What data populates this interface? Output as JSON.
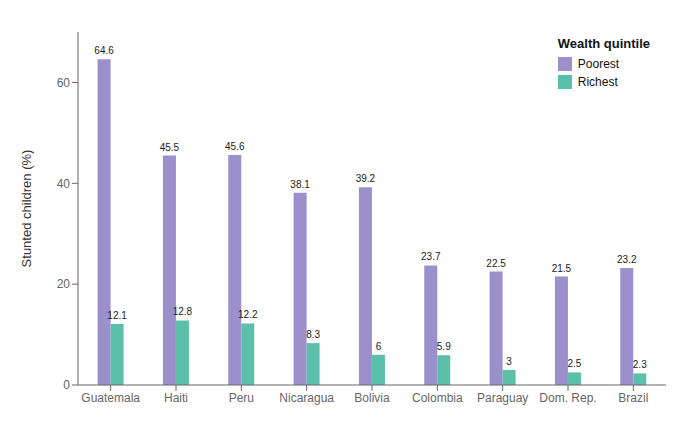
{
  "chart_data": {
    "type": "bar",
    "categories": [
      "Guatemala",
      "Haiti",
      "Peru",
      "Nicaragua",
      "Bolivia",
      "Colombia",
      "Paraguay",
      "Dom. Rep.",
      "Brazil"
    ],
    "series": [
      {
        "name": "Poorest",
        "color": "#9b8fcc",
        "values": [
          64.6,
          45.5,
          45.6,
          38.1,
          39.2,
          23.7,
          22.5,
          21.5,
          23.2
        ]
      },
      {
        "name": "Richest",
        "color": "#5bbfaa",
        "values": [
          12.1,
          12.8,
          12.2,
          8.3,
          6.0,
          5.9,
          3.0,
          2.5,
          2.3
        ]
      }
    ],
    "ylabel": "Stunted children (%)",
    "ylim": [
      0,
      70
    ],
    "yticks": [
      0,
      20,
      40,
      60
    ],
    "legend": "upper right",
    "legend_title": "Wealth quintile",
    "data_labels": true,
    "grid": false
  }
}
